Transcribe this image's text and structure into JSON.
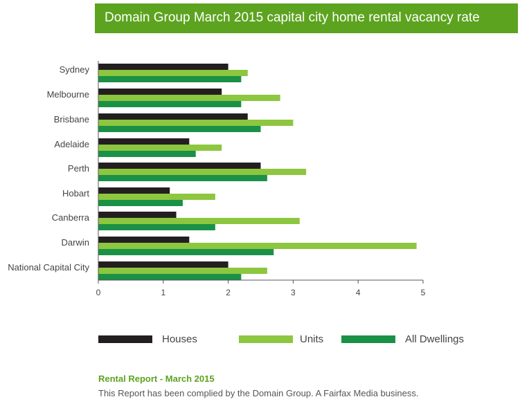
{
  "colors": {
    "houses": "#231f20",
    "units": "#8dc63f",
    "all_dwellings": "#1a9146",
    "banner": "#5ca31f"
  },
  "chart_data": {
    "type": "bar",
    "orientation": "horizontal",
    "title": "Domain Group March 2015 capital city home rental vacancy rate",
    "categories": [
      "Sydney",
      "Melbourne",
      "Brisbane",
      "Adelaide",
      "Perth",
      "Hobart",
      "Canberra",
      "Darwin",
      "National Capital City"
    ],
    "series": [
      {
        "name": "Houses",
        "values": [
          2.0,
          1.9,
          2.3,
          1.4,
          2.5,
          1.1,
          1.2,
          1.4,
          2.0
        ]
      },
      {
        "name": "Units",
        "values": [
          2.3,
          2.8,
          3.0,
          1.9,
          3.2,
          1.8,
          3.1,
          4.9,
          2.6
        ]
      },
      {
        "name": "All Dwellings",
        "values": [
          2.2,
          2.2,
          2.5,
          1.5,
          2.6,
          1.3,
          1.8,
          2.7,
          2.2
        ]
      }
    ],
    "xlim": [
      0,
      5
    ],
    "xticks": [
      "0",
      "1",
      "2",
      "3",
      "4",
      "5"
    ],
    "grid": false,
    "legend_position": "bottom"
  },
  "footer": {
    "title": "Rental Report - March 2015",
    "text": "This Report has been complied by the Domain Group. A Fairfax Media business."
  }
}
